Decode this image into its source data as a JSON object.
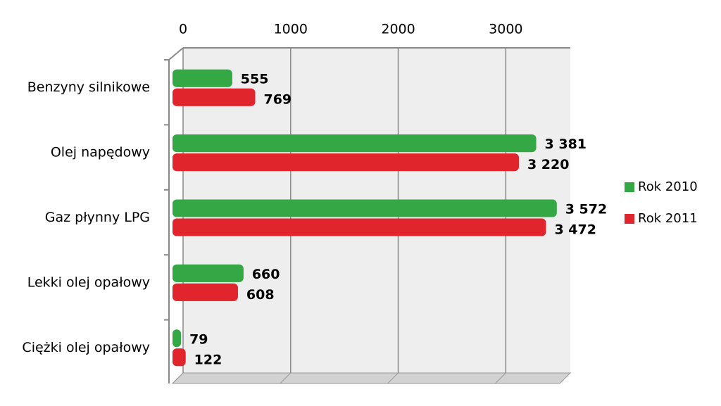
{
  "chart_data": {
    "type": "bar",
    "orientation": "horizontal",
    "categories": [
      "Benzyny silnikowe",
      "Olej napędowy",
      "Gaz płynny LPG",
      "Lekki olej opałowy",
      "Ciężki olej opałowy"
    ],
    "series": [
      {
        "name": "Rok 2010",
        "color": "#34a844",
        "values": [
          555,
          3381,
          3572,
          660,
          79
        ],
        "value_labels": [
          "555",
          "3 381",
          "3 572",
          "660",
          "79"
        ]
      },
      {
        "name": "Rok 2011",
        "color": "#e0262c",
        "values": [
          769,
          3220,
          3472,
          608,
          122
        ],
        "value_labels": [
          "769",
          "3 220",
          "3 472",
          "608",
          "122"
        ]
      }
    ],
    "xlim": [
      0,
      3600
    ],
    "xticks": [
      0,
      1000,
      2000,
      3000
    ],
    "grid": true,
    "legend": "right"
  }
}
